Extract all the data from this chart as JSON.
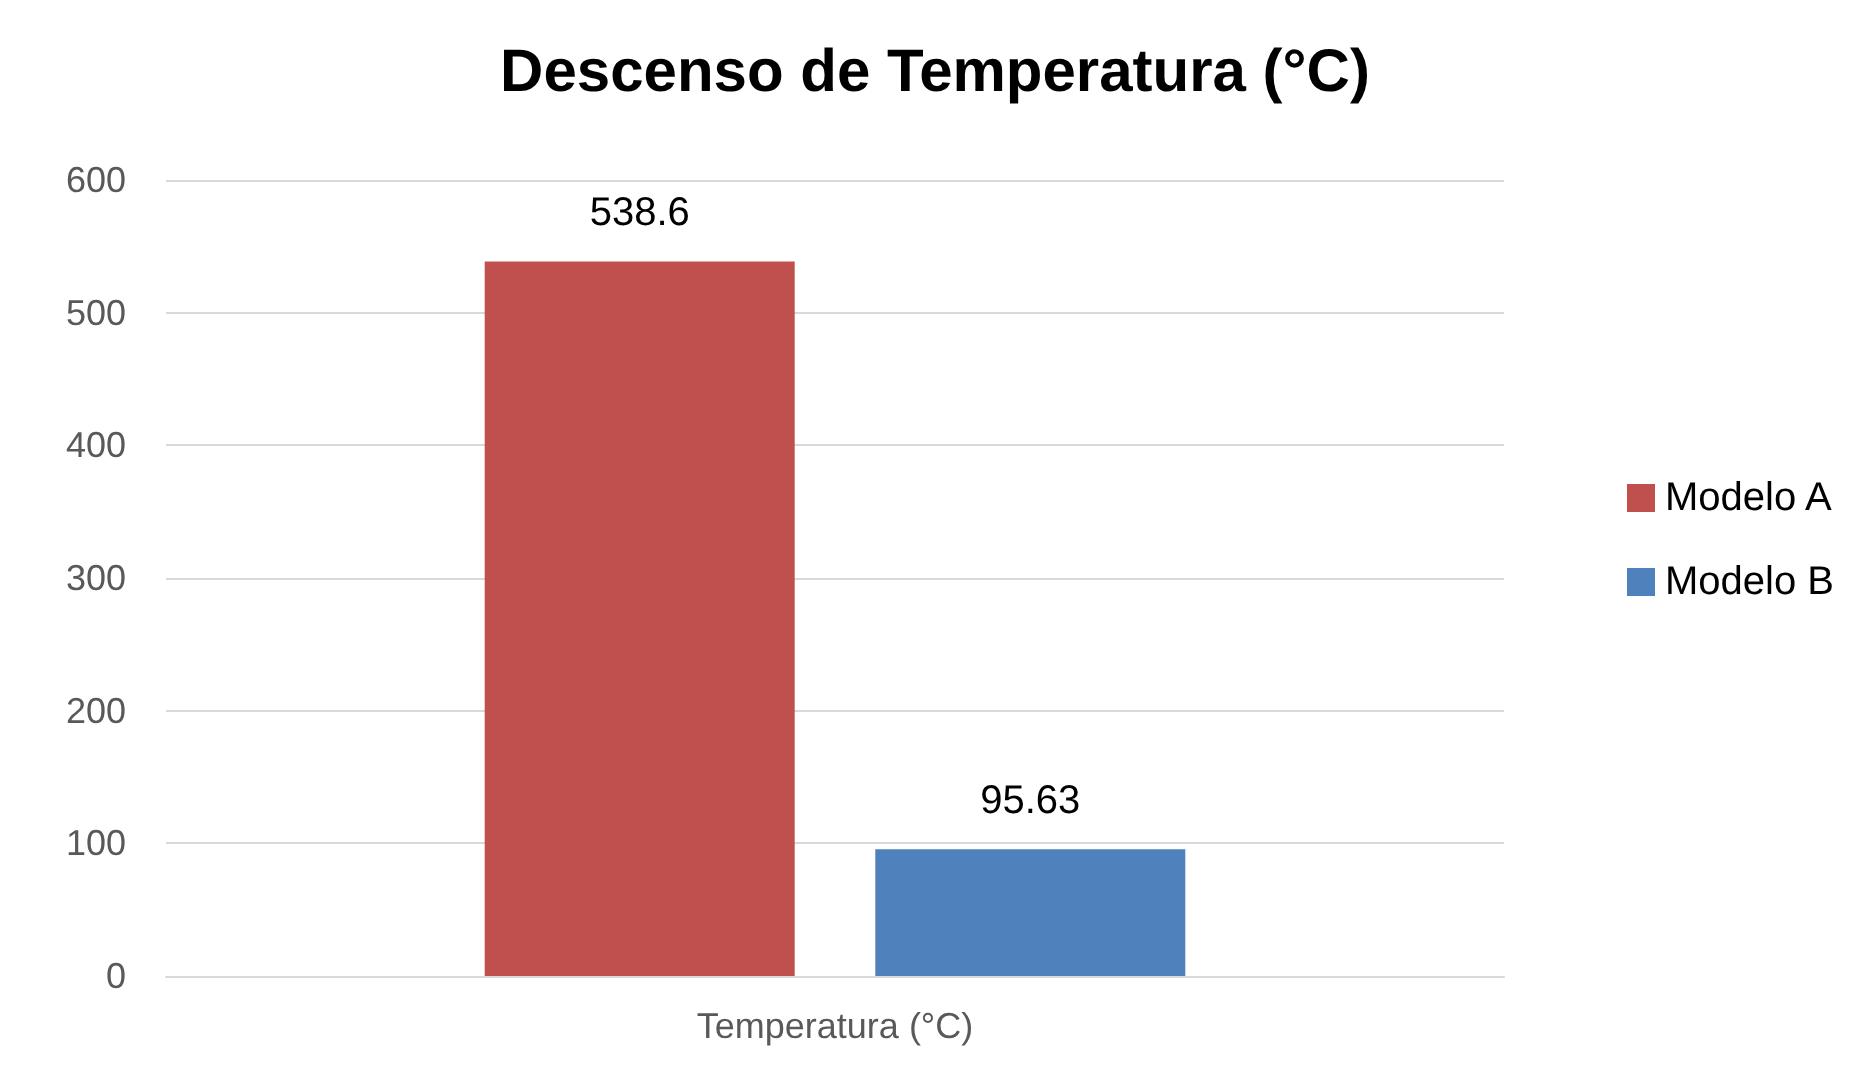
{
  "chart_data": {
    "type": "bar",
    "title": "Descenso de Temperatura (°C)",
    "categories": [
      "Temperatura (°C)"
    ],
    "series": [
      {
        "name": "Modelo A",
        "color": "#c0504d",
        "values": [
          538.6
        ]
      },
      {
        "name": "Modelo B",
        "color": "#4f81bd",
        "values": [
          95.63
        ]
      }
    ],
    "ylim": [
      0,
      600
    ],
    "yticks": [
      0,
      100,
      200,
      300,
      400,
      500,
      600
    ],
    "grid": "y",
    "legend": "right",
    "data_labels": true
  }
}
